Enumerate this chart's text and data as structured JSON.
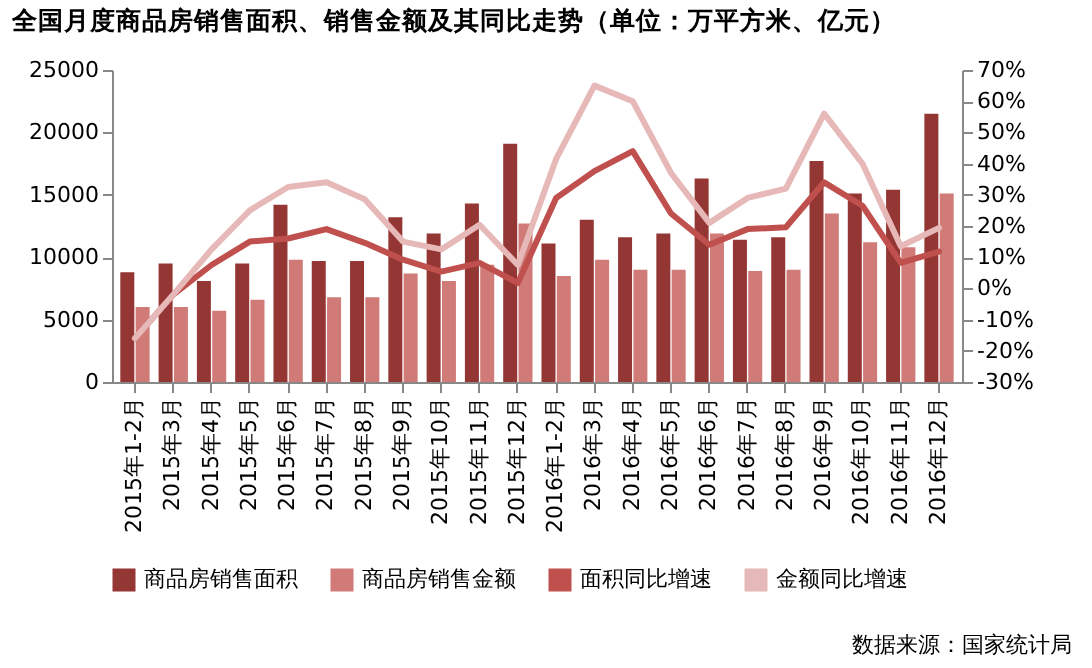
{
  "chart_data": {
    "type": "bar",
    "title": "全国月度商品房销售面积、销售金额及其同比走势（单位：万平方米、亿元）",
    "categories": [
      "2015年1-2月",
      "2015年3月",
      "2015年4月",
      "2015年5月",
      "2015年6月",
      "2015年7月",
      "2015年8月",
      "2015年9月",
      "2015年10月",
      "2015年11月",
      "2015年12月",
      "2016年1-2月",
      "2016年3月",
      "2016年4月",
      "2016年5月",
      "2016年6月",
      "2016年7月",
      "2016年8月",
      "2016年9月",
      "2016年10月",
      "2016年11月",
      "2016年12月"
    ],
    "series": [
      {
        "name": "商品房销售面积",
        "color": "#943634",
        "values": [
          8800,
          9500,
          8100,
          9500,
          14200,
          9700,
          9700,
          13200,
          11900,
          14300,
          19100,
          11100,
          13000,
          11600,
          11900,
          16300,
          11400,
          11600,
          17700,
          15100,
          15400,
          21500
        ]
      },
      {
        "name": "商品房销售金额",
        "color": "#d07b78",
        "values": [
          6000,
          6000,
          5700,
          6600,
          9800,
          6800,
          6800,
          8700,
          8100,
          9400,
          12700,
          8500,
          9800,
          9000,
          9000,
          11900,
          8900,
          9000,
          13500,
          11200,
          10800,
          15100
        ]
      },
      {
        "name": "面积同比增速",
        "type": "line",
        "axis": "y2",
        "color": "#c0504d",
        "values": [
          -16,
          -2,
          7.5,
          15,
          16,
          19,
          14.6,
          9.2,
          5.4,
          8.2,
          1.7,
          29,
          37.6,
          44,
          24,
          14,
          19,
          19.6,
          34,
          26.5,
          8.2,
          11.8
        ]
      },
      {
        "name": "金额同比增速",
        "type": "line",
        "axis": "y2",
        "color": "#e6b9b8",
        "values": [
          -16,
          -2,
          12.5,
          25,
          32.5,
          34,
          28.6,
          15,
          12.5,
          20.4,
          7.5,
          41.5,
          65,
          60,
          37,
          21,
          29,
          32,
          56,
          40,
          13.5,
          19.4
        ]
      }
    ],
    "ylim": [
      0,
      25000
    ],
    "yticks": [
      0,
      5000,
      10000,
      15000,
      20000,
      25000
    ],
    "y2lim": [
      -30,
      70
    ],
    "y2ticks": [
      {
        "value": -30,
        "label": "-30%"
      },
      {
        "value": -20,
        "label": "-20%"
      },
      {
        "value": -10,
        "label": "-10%"
      },
      {
        "value": 0,
        "label": "0%"
      },
      {
        "value": 10,
        "label": "10%"
      },
      {
        "value": 20,
        "label": "20%"
      },
      {
        "value": 30,
        "label": "30%"
      },
      {
        "value": 40,
        "label": "40%"
      },
      {
        "value": 50,
        "label": "50%"
      },
      {
        "value": 60,
        "label": "60%"
      },
      {
        "value": 70,
        "label": "70%"
      }
    ],
    "legend": "bottom",
    "grid": false,
    "annotations": [
      "数据来源：国家统计局"
    ]
  }
}
